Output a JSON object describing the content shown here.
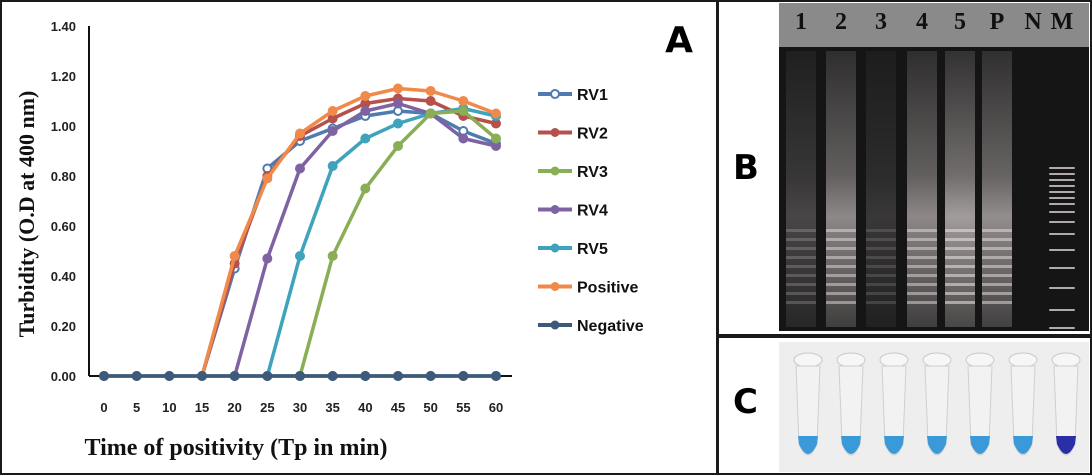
{
  "figure": {
    "panel_labels": {
      "a": "A",
      "b": "B",
      "c": "C"
    }
  },
  "chart_data": {
    "type": "line",
    "title": "",
    "xlabel": "Time of positivity (Tp in min)",
    "ylabel": "Turbidity (O.D at 400 nm)",
    "x": [
      0,
      5,
      10,
      15,
      20,
      25,
      30,
      35,
      40,
      45,
      50,
      55,
      60
    ],
    "x_tick_labels": [
      "0",
      "5",
      "10",
      "15",
      "20",
      "25",
      "30",
      "35",
      "40",
      "45",
      "50",
      "55",
      "60"
    ],
    "y_tick_labels": [
      "0.00",
      "0.20",
      "0.40",
      "0.60",
      "0.80",
      "1.00",
      "1.20",
      "1.40"
    ],
    "y_ticks": [
      0,
      0.2,
      0.4,
      0.6,
      0.8,
      1.0,
      1.2,
      1.4
    ],
    "ylim": [
      0,
      1.4
    ],
    "xlim": [
      0,
      60
    ],
    "grid": false,
    "legend_position": "right",
    "series": [
      {
        "name": "RV1",
        "color": "#4f7bb0",
        "marker": "open-circle",
        "values": [
          0,
          0,
          0,
          0,
          0.43,
          0.83,
          0.94,
          0.99,
          1.04,
          1.06,
          1.05,
          0.98,
          0.93
        ]
      },
      {
        "name": "RV2",
        "color": "#b5504c",
        "marker": "filled-circle",
        "values": [
          0,
          0,
          0,
          0,
          0.45,
          0.8,
          0.96,
          1.03,
          1.09,
          1.11,
          1.1,
          1.04,
          1.01
        ]
      },
      {
        "name": "RV3",
        "color": "#8aae55",
        "marker": "filled-circle",
        "values": [
          0,
          0,
          0,
          0,
          0,
          0,
          0,
          0.48,
          0.75,
          0.92,
          1.05,
          1.06,
          0.95
        ]
      },
      {
        "name": "RV4",
        "color": "#7e63a3",
        "marker": "filled-circle",
        "values": [
          0,
          0,
          0,
          0,
          0,
          0.47,
          0.83,
          0.98,
          1.06,
          1.09,
          1.05,
          0.95,
          0.92
        ]
      },
      {
        "name": "RV5",
        "color": "#3fa3bd",
        "marker": "filled-circle",
        "values": [
          0,
          0,
          0,
          0,
          0,
          0,
          0.48,
          0.84,
          0.95,
          1.01,
          1.05,
          1.07,
          1.04
        ]
      },
      {
        "name": "Positive",
        "color": "#f08a4b",
        "marker": "filled-circle",
        "values": [
          0,
          0,
          0,
          0,
          0.48,
          0.79,
          0.97,
          1.06,
          1.12,
          1.15,
          1.14,
          1.1,
          1.05
        ]
      },
      {
        "name": "Negative",
        "color": "#3d5a7a",
        "marker": "filled-circle",
        "values": [
          0,
          0,
          0,
          0,
          0,
          0,
          0,
          0,
          0,
          0,
          0,
          0,
          0
        ]
      }
    ]
  },
  "gel": {
    "lane_labels": [
      "1",
      "2",
      "3",
      "4",
      "5",
      "P",
      "N",
      "M"
    ],
    "lane_intensity": [
      0.35,
      0.8,
      0.25,
      0.8,
      0.95,
      0.85,
      0.0,
      0.0
    ]
  },
  "tubes": {
    "count": 7,
    "colors": [
      "#3a9ad9",
      "#3a9ad9",
      "#3a9ad9",
      "#3a9ad9",
      "#3a9ad9",
      "#3a9ad9",
      "#2a2fa8"
    ]
  }
}
